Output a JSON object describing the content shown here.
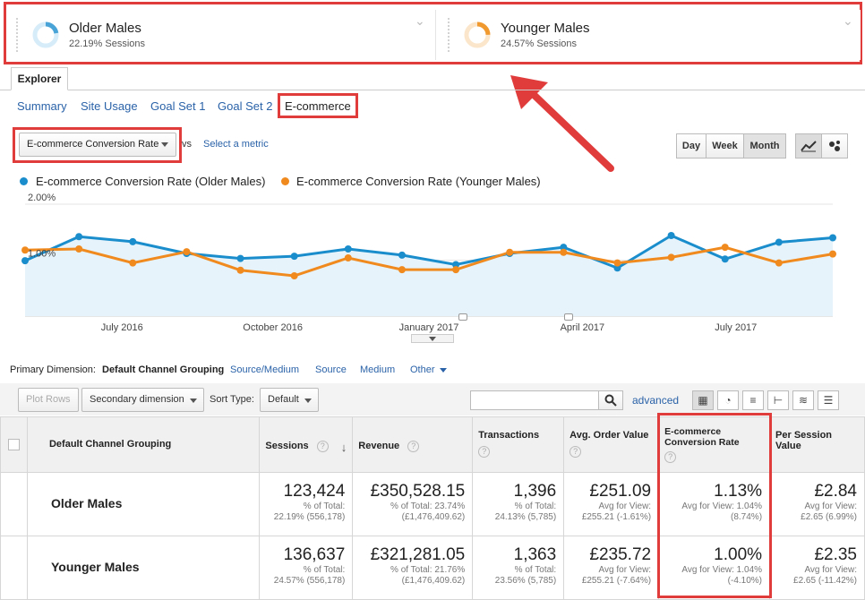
{
  "segments": [
    {
      "name": "Older Males",
      "sub": "22.19% Sessions",
      "color": "#4aa3d6",
      "pct": 22.19
    },
    {
      "name": "Younger Males",
      "sub": "24.57% Sessions",
      "color": "#f0992e",
      "pct": 24.57
    }
  ],
  "explorer_tab": "Explorer",
  "subtabs": [
    "Summary",
    "Site Usage",
    "Goal Set 1",
    "Goal Set 2",
    "E-commerce"
  ],
  "metric": {
    "selected": "E-commerce Conversion Rate",
    "vs": "vs",
    "select_metric": "Select a metric"
  },
  "timescale": [
    "Day",
    "Week",
    "Month"
  ],
  "chart_data": {
    "type": "line",
    "series": [
      {
        "name": "E-commerce Conversion Rate (Older Males)",
        "color": "#1a8dcc",
        "values": [
          0.99,
          1.42,
          1.33,
          1.12,
          1.03,
          1.07,
          1.2,
          1.09,
          0.92,
          1.12,
          1.23,
          0.86,
          1.44,
          1.02,
          1.32,
          1.4
        ]
      },
      {
        "name": "E-commerce Conversion Rate (Younger Males)",
        "color": "#f08a1f",
        "values": [
          1.18,
          1.2,
          0.95,
          1.15,
          0.82,
          0.72,
          1.04,
          0.83,
          0.83,
          1.14,
          1.14,
          0.95,
          1.05,
          1.23,
          0.95,
          1.11
        ]
      }
    ],
    "ytick_labels": [
      "2.00%",
      "1.00%"
    ],
    "ylim": [
      0,
      2.0
    ],
    "xtick_labels": [
      "July 2016",
      "October 2016",
      "January 2017",
      "April 2017",
      "July 2017"
    ]
  },
  "primary_dimension": {
    "label": "Primary Dimension:",
    "current": "Default Channel Grouping",
    "options": [
      "Source/Medium",
      "Source",
      "Medium",
      "Other"
    ]
  },
  "toolbar": {
    "plot_rows": "Plot Rows",
    "secondary": "Secondary dimension",
    "sort_label": "Sort Type:",
    "sort_value": "Default",
    "advanced": "advanced"
  },
  "table": {
    "headers": [
      "Default Channel Grouping",
      "Sessions",
      "Revenue",
      "Transactions",
      "Avg. Order Value",
      "E-commerce Conversion Rate",
      "Per Session Value"
    ],
    "rows": [
      {
        "name": "Older Males",
        "cells": [
          {
            "big": "123,424",
            "l1": "% of Total:",
            "l2": "22.19% (556,178)"
          },
          {
            "big": "£350,528.15",
            "l1": "% of Total: 23.74%",
            "l2": "(£1,476,409.62)"
          },
          {
            "big": "1,396",
            "l1": "% of Total:",
            "l2": "24.13% (5,785)"
          },
          {
            "big": "£251.09",
            "l1": "Avg for View:",
            "l2": "£255.21 (-1.61%)"
          },
          {
            "big": "1.13%",
            "l1": "Avg for View: 1.04%",
            "l2": "(8.74%)"
          },
          {
            "big": "£2.84",
            "l1": "Avg for View:",
            "l2": "£2.65 (6.99%)"
          }
        ]
      },
      {
        "name": "Younger Males",
        "cells": [
          {
            "big": "136,637",
            "l1": "% of Total:",
            "l2": "24.57% (556,178)"
          },
          {
            "big": "£321,281.05",
            "l1": "% of Total: 21.76%",
            "l2": "(£1,476,409.62)"
          },
          {
            "big": "1,363",
            "l1": "% of Total:",
            "l2": "23.56% (5,785)"
          },
          {
            "big": "£235.72",
            "l1": "Avg for View:",
            "l2": "£255.21 (-7.64%)"
          },
          {
            "big": "1.00%",
            "l1": "Avg for View: 1.04%",
            "l2": "(-4.10%)"
          },
          {
            "big": "£2.35",
            "l1": "Avg for View:",
            "l2": "£2.65 (-11.42%)"
          }
        ]
      }
    ]
  }
}
